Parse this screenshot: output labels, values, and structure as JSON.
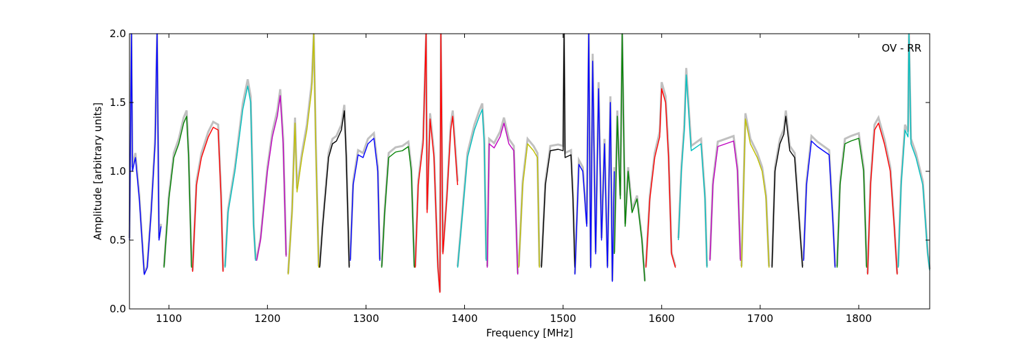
{
  "chart_data": {
    "type": "line",
    "title": "",
    "xlabel": "Frequency [MHz]",
    "ylabel": "Amplitude [arbitrary units]",
    "annotation": "OV - RR",
    "xlim": [
      1060,
      1872
    ],
    "ylim": [
      0.0,
      2.0
    ],
    "x_ticks": [
      1100,
      1200,
      1300,
      1400,
      1500,
      1600,
      1700,
      1800
    ],
    "x_tick_labels": [
      "1100",
      "1200",
      "1300",
      "1400",
      "1500",
      "1600",
      "1700",
      "1800"
    ],
    "y_ticks": [
      0.0,
      0.5,
      1.0,
      1.5,
      2.0
    ],
    "y_tick_labels": [
      "0.0",
      "0.5",
      "1.0",
      "1.5",
      "2.0"
    ],
    "grid": false,
    "background_color": "#c0c0c0",
    "series": [
      {
        "color": "#0000ff",
        "points": [
          [
            1060,
            0.5
          ],
          [
            1062,
            2.0
          ],
          [
            1063,
            1.0
          ],
          [
            1066,
            1.1
          ],
          [
            1070,
            0.8
          ],
          [
            1075,
            0.25
          ],
          [
            1078,
            0.3
          ],
          [
            1082,
            0.7
          ],
          [
            1086,
            1.2
          ],
          [
            1088,
            2.0
          ],
          [
            1090,
            0.5
          ],
          [
            1092,
            0.6
          ]
        ]
      },
      {
        "color": "#008000",
        "points": [
          [
            1095,
            0.3
          ],
          [
            1100,
            0.8
          ],
          [
            1105,
            1.1
          ],
          [
            1110,
            1.2
          ],
          [
            1115,
            1.35
          ],
          [
            1118,
            1.4
          ],
          [
            1120,
            1.1
          ],
          [
            1123,
            0.3
          ]
        ]
      },
      {
        "color": "#ff0000",
        "points": [
          [
            1124,
            0.27
          ],
          [
            1128,
            0.9
          ],
          [
            1133,
            1.1
          ],
          [
            1140,
            1.25
          ],
          [
            1145,
            1.32
          ],
          [
            1150,
            1.3
          ],
          [
            1153,
            0.8
          ],
          [
            1155,
            0.27
          ]
        ]
      },
      {
        "color": "#00bfbf",
        "points": [
          [
            1157,
            0.3
          ],
          [
            1160,
            0.7
          ],
          [
            1167,
            1.0
          ],
          [
            1175,
            1.45
          ],
          [
            1180,
            1.62
          ],
          [
            1183,
            1.5
          ],
          [
            1186,
            0.6
          ],
          [
            1188,
            0.35
          ]
        ]
      },
      {
        "color": "#bf00bf",
        "points": [
          [
            1189,
            0.35
          ],
          [
            1193,
            0.5
          ],
          [
            1200,
            1.0
          ],
          [
            1205,
            1.25
          ],
          [
            1210,
            1.4
          ],
          [
            1213,
            1.55
          ],
          [
            1216,
            1.2
          ],
          [
            1219,
            0.38
          ]
        ]
      },
      {
        "color": "#bfbf00",
        "points": [
          [
            1221,
            0.25
          ],
          [
            1225,
            0.7
          ],
          [
            1228,
            1.35
          ],
          [
            1230,
            0.85
          ],
          [
            1235,
            1.1
          ],
          [
            1240,
            1.3
          ],
          [
            1245,
            1.6
          ],
          [
            1247,
            2.0
          ],
          [
            1249,
            1.2
          ],
          [
            1252,
            0.3
          ]
        ]
      },
      {
        "color": "#000000",
        "points": [
          [
            1253,
            0.3
          ],
          [
            1256,
            0.6
          ],
          [
            1262,
            1.1
          ],
          [
            1266,
            1.2
          ],
          [
            1270,
            1.22
          ],
          [
            1275,
            1.3
          ],
          [
            1278,
            1.44
          ],
          [
            1280,
            1.1
          ],
          [
            1283,
            0.3
          ]
        ]
      },
      {
        "color": "#0000ff",
        "points": [
          [
            1284,
            0.35
          ],
          [
            1287,
            0.9
          ],
          [
            1292,
            1.12
          ],
          [
            1297,
            1.1
          ],
          [
            1302,
            1.2
          ],
          [
            1308,
            1.24
          ],
          [
            1312,
            1.0
          ],
          [
            1314,
            0.35
          ]
        ]
      },
      {
        "color": "#008000",
        "points": [
          [
            1316,
            0.3
          ],
          [
            1319,
            0.7
          ],
          [
            1323,
            1.1
          ],
          [
            1330,
            1.14
          ],
          [
            1337,
            1.15
          ],
          [
            1343,
            1.18
          ],
          [
            1346,
            1.0
          ],
          [
            1349,
            0.3
          ]
        ]
      },
      {
        "color": "#ff0000",
        "points": [
          [
            1350,
            0.3
          ],
          [
            1353,
            0.9
          ],
          [
            1358,
            1.2
          ],
          [
            1361,
            2.0
          ],
          [
            1362,
            0.7
          ],
          [
            1365,
            1.38
          ],
          [
            1369,
            1.1
          ],
          [
            1373,
            0.3
          ],
          [
            1375,
            0.12
          ],
          [
            1376,
            2.0
          ],
          [
            1378,
            0.4
          ],
          [
            1382,
            0.8
          ],
          [
            1386,
            1.3
          ],
          [
            1388,
            1.4
          ],
          [
            1391,
            1.1
          ],
          [
            1393,
            0.9
          ]
        ]
      },
      {
        "color": "#00bfbf",
        "points": [
          [
            1393,
            0.3
          ],
          [
            1398,
            0.7
          ],
          [
            1403,
            1.1
          ],
          [
            1410,
            1.3
          ],
          [
            1415,
            1.4
          ],
          [
            1418,
            1.45
          ],
          [
            1420,
            1.2
          ],
          [
            1422,
            0.35
          ]
        ]
      },
      {
        "color": "#bf00bf",
        "points": [
          [
            1423,
            0.3
          ],
          [
            1425,
            1.2
          ],
          [
            1430,
            1.17
          ],
          [
            1436,
            1.25
          ],
          [
            1440,
            1.35
          ],
          [
            1445,
            1.2
          ],
          [
            1450,
            1.15
          ],
          [
            1454,
            0.25
          ]
        ]
      },
      {
        "color": "#bfbf00",
        "points": [
          [
            1455,
            0.3
          ],
          [
            1459,
            0.9
          ],
          [
            1464,
            1.2
          ],
          [
            1470,
            1.15
          ],
          [
            1474,
            1.1
          ],
          [
            1476,
            0.3
          ]
        ]
      },
      {
        "color": "#000000",
        "points": [
          [
            1478,
            0.3
          ],
          [
            1482,
            0.9
          ],
          [
            1487,
            1.15
          ],
          [
            1495,
            1.16
          ],
          [
            1500,
            1.15
          ],
          [
            1501,
            2.0
          ],
          [
            1502,
            1.1
          ],
          [
            1508,
            1.12
          ],
          [
            1510,
            0.8
          ],
          [
            1512,
            0.3
          ]
        ]
      },
      {
        "color": "#0000ff",
        "points": [
          [
            1512,
            0.25
          ],
          [
            1516,
            1.05
          ],
          [
            1520,
            1.0
          ],
          [
            1524,
            0.6
          ],
          [
            1526,
            2.0
          ],
          [
            1528,
            0.3
          ],
          [
            1530,
            1.8
          ],
          [
            1533,
            0.4
          ],
          [
            1536,
            1.6
          ],
          [
            1539,
            0.5
          ],
          [
            1542,
            1.2
          ],
          [
            1545,
            0.3
          ],
          [
            1548,
            1.5
          ],
          [
            1550,
            0.2
          ],
          [
            1552,
            1.0
          ]
        ]
      },
      {
        "color": "#008000",
        "points": [
          [
            1552,
            0.4
          ],
          [
            1555,
            1.4
          ],
          [
            1558,
            0.8
          ],
          [
            1560,
            2.0
          ],
          [
            1563,
            0.6
          ],
          [
            1566,
            1.0
          ],
          [
            1570,
            0.7
          ],
          [
            1575,
            0.8
          ],
          [
            1580,
            0.5
          ],
          [
            1583,
            0.2
          ]
        ]
      },
      {
        "color": "#ff0000",
        "points": [
          [
            1584,
            0.3
          ],
          [
            1588,
            0.8
          ],
          [
            1593,
            1.1
          ],
          [
            1598,
            1.25
          ],
          [
            1600,
            1.6
          ],
          [
            1604,
            1.5
          ],
          [
            1607,
            1.1
          ],
          [
            1610,
            0.4
          ],
          [
            1614,
            0.3
          ]
        ]
      },
      {
        "color": "#00bfbf",
        "points": [
          [
            1617,
            0.5
          ],
          [
            1620,
            1.0
          ],
          [
            1623,
            1.3
          ],
          [
            1625,
            1.7
          ],
          [
            1630,
            1.15
          ],
          [
            1640,
            1.2
          ],
          [
            1644,
            0.8
          ],
          [
            1646,
            0.3
          ]
        ]
      },
      {
        "color": "#bf00bf",
        "points": [
          [
            1649,
            0.35
          ],
          [
            1652,
            0.9
          ],
          [
            1657,
            1.18
          ],
          [
            1665,
            1.2
          ],
          [
            1673,
            1.22
          ],
          [
            1677,
            1.0
          ],
          [
            1680,
            0.35
          ]
        ]
      },
      {
        "color": "#bfbf00",
        "points": [
          [
            1681,
            0.3
          ],
          [
            1685,
            1.38
          ],
          [
            1690,
            1.2
          ],
          [
            1697,
            1.1
          ],
          [
            1702,
            1.0
          ],
          [
            1706,
            0.8
          ],
          [
            1709,
            0.3
          ]
        ]
      },
      {
        "color": "#000000",
        "points": [
          [
            1712,
            0.3
          ],
          [
            1715,
            1.0
          ],
          [
            1720,
            1.2
          ],
          [
            1724,
            1.27
          ],
          [
            1726,
            1.4
          ],
          [
            1730,
            1.15
          ],
          [
            1735,
            1.1
          ],
          [
            1740,
            0.6
          ],
          [
            1743,
            0.3
          ]
        ]
      },
      {
        "color": "#0000ff",
        "points": [
          [
            1744,
            0.35
          ],
          [
            1747,
            0.9
          ],
          [
            1752,
            1.22
          ],
          [
            1758,
            1.18
          ],
          [
            1764,
            1.15
          ],
          [
            1770,
            1.12
          ],
          [
            1774,
            0.6
          ],
          [
            1776,
            0.3
          ]
        ]
      },
      {
        "color": "#008000",
        "points": [
          [
            1778,
            0.3
          ],
          [
            1781,
            0.9
          ],
          [
            1786,
            1.2
          ],
          [
            1792,
            1.22
          ],
          [
            1800,
            1.24
          ],
          [
            1805,
            1.0
          ],
          [
            1808,
            0.3
          ]
        ]
      },
      {
        "color": "#ff0000",
        "points": [
          [
            1809,
            0.25
          ],
          [
            1812,
            0.9
          ],
          [
            1816,
            1.3
          ],
          [
            1820,
            1.35
          ],
          [
            1826,
            1.2
          ],
          [
            1832,
            1.0
          ],
          [
            1836,
            0.6
          ],
          [
            1839,
            0.25
          ]
        ]
      },
      {
        "color": "#00bfbf",
        "points": [
          [
            1840,
            0.3
          ],
          [
            1843,
            0.9
          ],
          [
            1847,
            1.3
          ],
          [
            1850,
            1.25
          ],
          [
            1851,
            2.0
          ],
          [
            1853,
            1.2
          ],
          [
            1858,
            1.1
          ],
          [
            1865,
            0.9
          ],
          [
            1870,
            0.4
          ],
          [
            1872,
            0.28
          ]
        ]
      }
    ]
  }
}
